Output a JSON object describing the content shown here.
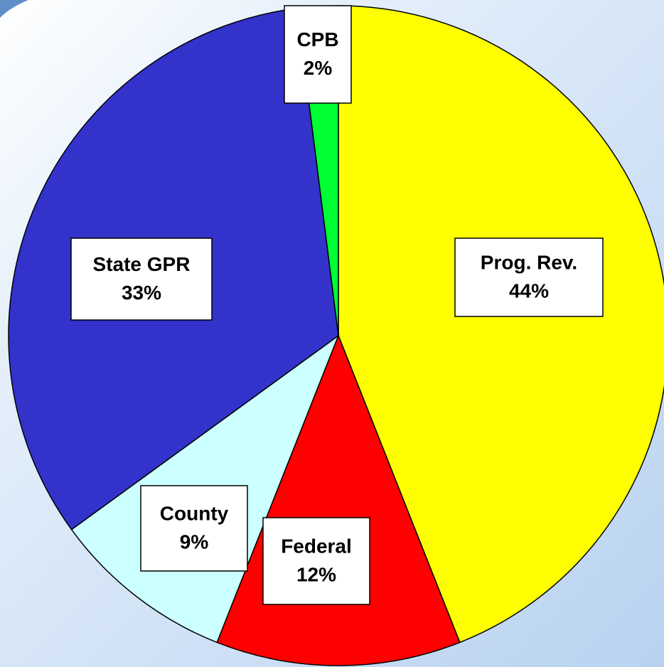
{
  "chart_data": {
    "type": "pie",
    "categories": [
      "Prog. Rev.",
      "Federal",
      "County",
      "State GPR",
      "CPB"
    ],
    "values": [
      44,
      12,
      9,
      33,
      2
    ],
    "value_labels": [
      "44%",
      "12%",
      "9%",
      "33%",
      "2%"
    ],
    "colors": [
      "#ffff00",
      "#ff0000",
      "#ccffff",
      "#3333cc",
      "#00ff33"
    ]
  }
}
